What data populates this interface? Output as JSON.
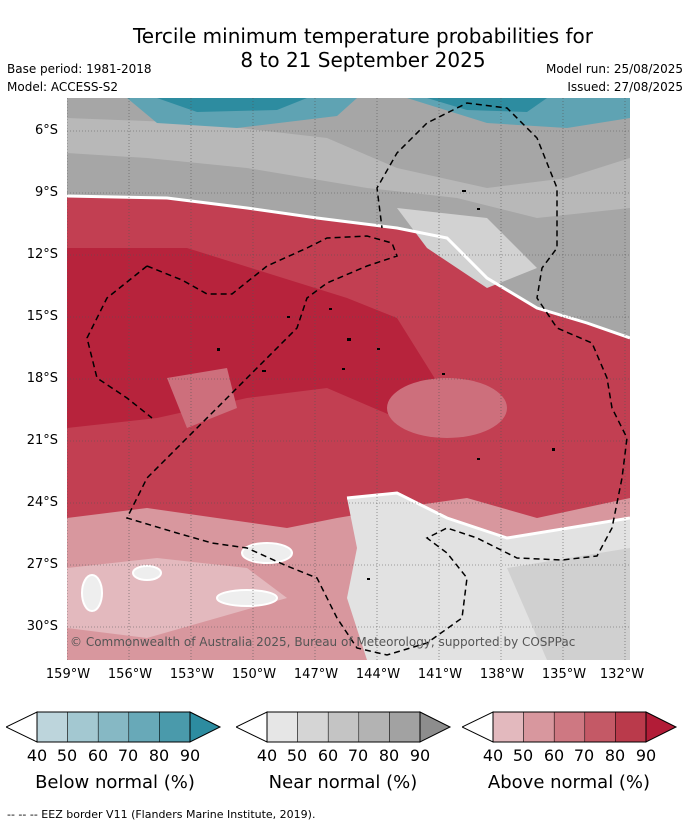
{
  "title_line1": "Tercile minimum temperature probabilities for",
  "title_line2": "8 to 21 September 2025",
  "base_period": "Base period: 1981-2018",
  "model": "Model: ACCESS-S2",
  "model_run": "Model run: 25/08/2025",
  "issued": "Issued: 27/08/2025",
  "copyright": "© Commonwealth of Australia 2025, Bureau of Meteorology, supported by COSPPac",
  "lat_labels": [
    "6°S",
    "9°S",
    "12°S",
    "15°S",
    "18°S",
    "21°S",
    "24°S",
    "27°S",
    "30°S"
  ],
  "lon_labels": [
    "159°W",
    "156°W",
    "153°W",
    "150°W",
    "147°W",
    "144°W",
    "141°W",
    "138°W",
    "135°W",
    "132°W"
  ],
  "colorbars": [
    {
      "label": "Below normal (%)",
      "ticks": [
        "40",
        "50",
        "60",
        "70",
        "80",
        "90"
      ],
      "colors": [
        "#bdd5dc",
        "#a3c8d1",
        "#86b8c4",
        "#68a9b8",
        "#4a9aab",
        "#2d8ca0"
      ]
    },
    {
      "label": "Near normal (%)",
      "ticks": [
        "40",
        "50",
        "60",
        "70",
        "80",
        "90"
      ],
      "colors": [
        "#e6e6e6",
        "#d5d5d5",
        "#c4c4c4",
        "#b3b3b3",
        "#a2a2a2",
        "#8d8d8d"
      ]
    },
    {
      "label": "Above normal (%)",
      "ticks": [
        "40",
        "50",
        "60",
        "70",
        "80",
        "90"
      ],
      "colors": [
        "#e3b9be",
        "#d8979e",
        "#ce7882",
        "#c45966",
        "#ba3a4b",
        "#b21c37"
      ]
    }
  ],
  "footer": "--  --  -- EEZ border V11 (Flanders Marine Institute, 2019)."
}
